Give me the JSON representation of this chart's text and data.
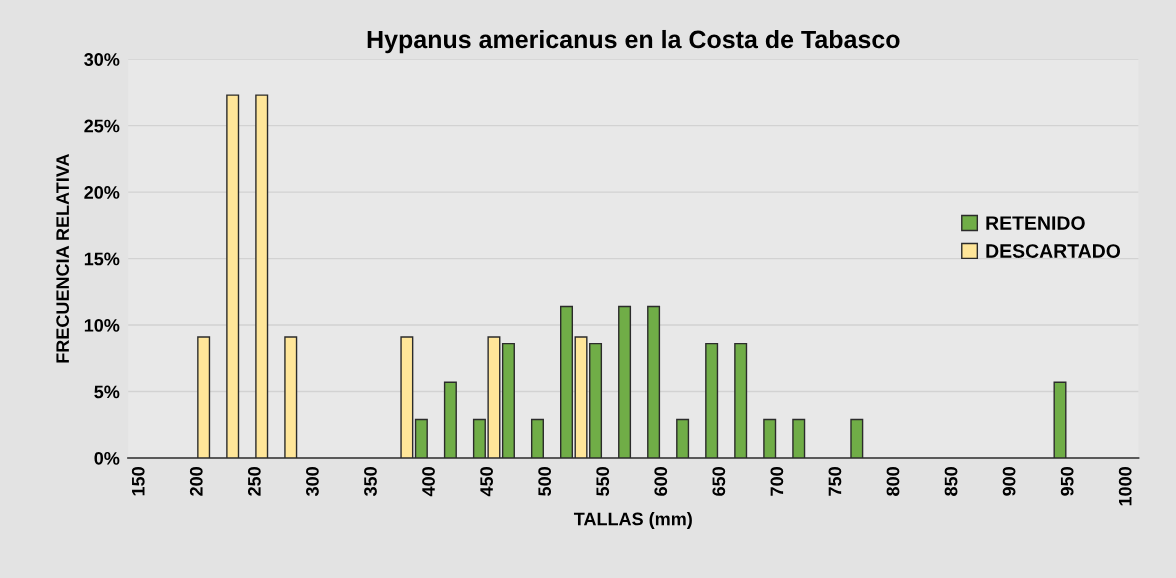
{
  "chart_data": {
    "type": "bar",
    "title": "Hypanus americanus en la Costa de Tabasco",
    "xlabel": "TALLAS (mm)",
    "ylabel": "FRECUENCIA RELATIVA",
    "series": [
      {
        "name": "RETENIDO",
        "color": "#70ad47",
        "x": [
          392.5,
          417.5,
          442.5,
          467.5,
          492.5,
          517.5,
          542.5,
          567.5,
          592.5,
          617.5,
          642.5,
          667.5,
          692.5,
          717.5,
          767.5,
          942.5
        ],
        "values": [
          2.9,
          5.7,
          2.9,
          8.6,
          2.9,
          11.4,
          8.6,
          11.4,
          11.4,
          2.9,
          8.6,
          8.6,
          2.9,
          2.9,
          2.9,
          5.7
        ]
      },
      {
        "name": "DESCARTADO",
        "color": "#ffe699",
        "x": [
          205,
          230,
          255,
          280,
          380,
          455,
          530
        ],
        "values": [
          9.1,
          27.3,
          27.3,
          9.1,
          9.1,
          9.1,
          9.1
        ]
      }
    ],
    "xlim": [
      140,
      1010
    ],
    "xticks": [
      150,
      200,
      250,
      300,
      350,
      400,
      450,
      500,
      550,
      600,
      650,
      700,
      750,
      800,
      850,
      900,
      950,
      1000
    ],
    "ylim": [
      0,
      30
    ],
    "yticks": [
      {
        "value": 0,
        "label": "0%"
      },
      {
        "value": 5,
        "label": "5%"
      },
      {
        "value": 10,
        "label": "10%"
      },
      {
        "value": 15,
        "label": "15%"
      },
      {
        "value": 20,
        "label": "20%"
      },
      {
        "value": 25,
        "label": "25%"
      },
      {
        "value": 30,
        "label": "30%"
      }
    ],
    "grid": "y",
    "legend": "right"
  }
}
